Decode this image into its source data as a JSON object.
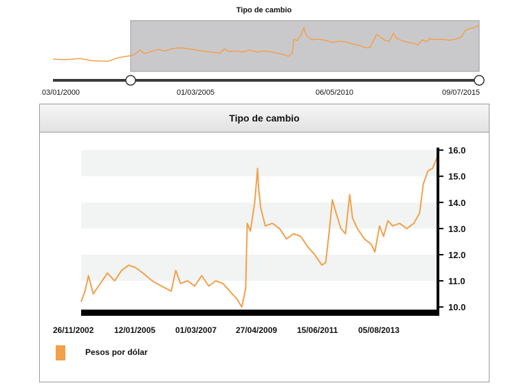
{
  "navigator": {
    "title": "Tipo de cambio",
    "ticks": [
      "03/01/2000",
      "01/03/2005",
      "06/05/2010",
      "09/07/2015"
    ]
  },
  "legend": {
    "label": "Pesos por dólar"
  },
  "colors": {
    "series": "#f2a04a",
    "band": "#f1f4f2",
    "axis": "#000000",
    "selection": "#c9c9cc"
  },
  "chart_data": {
    "type": "line",
    "title": "Tipo de cambio",
    "xlabel": "",
    "ylabel": "",
    "ylim": [
      9.9,
      16.2
    ],
    "yticks": [
      10.0,
      11.0,
      12.0,
      13.0,
      14.0,
      15.0,
      16.0
    ],
    "xticks": [
      "26/11/2002",
      "12/01/2005",
      "01/03/2007",
      "27/04/2009",
      "15/06/2011",
      "05/08/2013"
    ],
    "series": [
      {
        "name": "Pesos por dólar",
        "x": [
          "2002-11-26",
          "2003-01-15",
          "2003-03-01",
          "2003-05-01",
          "2003-08-01",
          "2003-11-01",
          "2004-02-01",
          "2004-05-01",
          "2004-08-01",
          "2004-11-01",
          "2005-02-01",
          "2005-06-01",
          "2005-10-01",
          "2006-02-01",
          "2006-04-01",
          "2006-06-01",
          "2006-09-01",
          "2006-12-01",
          "2007-03-01",
          "2007-06-01",
          "2007-09-01",
          "2007-12-01",
          "2008-03-01",
          "2008-06-01",
          "2008-08-01",
          "2008-09-20",
          "2008-10-10",
          "2008-11-20",
          "2009-01-15",
          "2009-02-20",
          "2009-03-05",
          "2009-04-01",
          "2009-06-01",
          "2009-09-01",
          "2009-12-01",
          "2010-03-01",
          "2010-06-01",
          "2010-09-01",
          "2010-12-01",
          "2011-03-01",
          "2011-06-01",
          "2011-07-20",
          "2011-09-01",
          "2011-10-15",
          "2011-12-01",
          "2012-02-01",
          "2012-04-01",
          "2012-05-25",
          "2012-07-01",
          "2012-09-01",
          "2012-12-01",
          "2013-03-01",
          "2013-04-15",
          "2013-06-15",
          "2013-08-05",
          "2013-10-01",
          "2013-12-01",
          "2014-03-01",
          "2014-06-01",
          "2014-09-01",
          "2014-11-15",
          "2015-01-01",
          "2015-03-01",
          "2015-05-01",
          "2015-07-09"
        ],
        "values": [
          10.2,
          10.6,
          11.2,
          10.5,
          10.9,
          11.3,
          11.0,
          11.4,
          11.6,
          11.5,
          11.3,
          11.0,
          10.8,
          10.6,
          11.4,
          10.9,
          11.0,
          10.8,
          11.2,
          10.8,
          11.0,
          10.9,
          10.6,
          10.3,
          10.0,
          10.7,
          13.2,
          12.9,
          14.0,
          15.3,
          14.6,
          13.8,
          13.1,
          13.2,
          13.0,
          12.6,
          12.8,
          12.7,
          12.3,
          12.0,
          11.6,
          11.7,
          12.8,
          14.1,
          13.6,
          13.0,
          12.8,
          14.3,
          13.4,
          13.0,
          12.6,
          12.4,
          12.1,
          13.1,
          12.7,
          13.3,
          13.1,
          13.2,
          13.0,
          13.2,
          13.6,
          14.7,
          15.2,
          15.3,
          15.8
        ]
      }
    ]
  }
}
